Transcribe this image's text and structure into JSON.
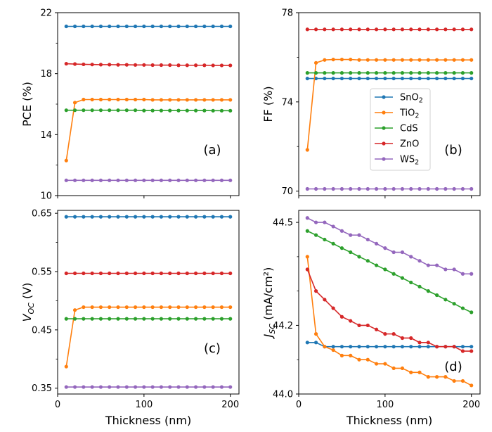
{
  "colors": {
    "SnO2": "#1f77b4",
    "TiO2": "#ff7f0e",
    "CdS": "#2ca02c",
    "ZnO": "#d62728",
    "WS2": "#9467bd"
  },
  "legend": {
    "entries": [
      {
        "key": "SnO2",
        "base": "SnO",
        "sub": "2"
      },
      {
        "key": "TiO2",
        "base": "TiO",
        "sub": "2"
      },
      {
        "key": "CdS",
        "base": "CdS",
        "sub": ""
      },
      {
        "key": "ZnO",
        "base": "ZnO",
        "sub": ""
      },
      {
        "key": "WS2",
        "base": "WS",
        "sub": "2"
      }
    ]
  },
  "chart_data": [
    {
      "type": "line",
      "panel_label": "(a)",
      "ylabel": "PCE (%)",
      "ylabel_base": "PCE (%)",
      "ylabel_sub": "",
      "ylabel_suffix": "",
      "xlabel": "",
      "xlim": [
        0,
        210
      ],
      "ylim": [
        10,
        22
      ],
      "xticks": [
        0,
        100,
        200
      ],
      "xtick_labels": [],
      "yticks": [
        10,
        14,
        18,
        22
      ],
      "ytick_labels": [
        "10",
        "14",
        "18",
        "22"
      ],
      "yminor": [
        12,
        16,
        20
      ],
      "x": [
        10,
        20,
        30,
        40,
        50,
        60,
        70,
        80,
        90,
        100,
        110,
        120,
        130,
        140,
        150,
        160,
        170,
        180,
        190,
        200
      ],
      "series": [
        {
          "name": "SnO2",
          "values": [
            21.1,
            21.1,
            21.1,
            21.1,
            21.1,
            21.1,
            21.1,
            21.1,
            21.1,
            21.1,
            21.1,
            21.1,
            21.1,
            21.1,
            21.1,
            21.1,
            21.1,
            21.1,
            21.1,
            21.1
          ]
        },
        {
          "name": "TiO2",
          "values": [
            12.3,
            16.1,
            16.3,
            16.3,
            16.3,
            16.3,
            16.3,
            16.3,
            16.3,
            16.3,
            16.28,
            16.28,
            16.28,
            16.28,
            16.28,
            16.28,
            16.28,
            16.28,
            16.28,
            16.28
          ]
        },
        {
          "name": "CdS",
          "values": [
            15.6,
            15.6,
            15.6,
            15.6,
            15.6,
            15.6,
            15.6,
            15.6,
            15.6,
            15.58,
            15.58,
            15.58,
            15.58,
            15.58,
            15.58,
            15.58,
            15.58,
            15.57,
            15.57,
            15.57
          ]
        },
        {
          "name": "ZnO",
          "values": [
            18.65,
            18.63,
            18.61,
            18.6,
            18.59,
            18.59,
            18.58,
            18.58,
            18.57,
            18.57,
            18.56,
            18.56,
            18.56,
            18.55,
            18.55,
            18.55,
            18.55,
            18.54,
            18.54,
            18.54
          ]
        },
        {
          "name": "WS2",
          "values": [
            11.0,
            11.0,
            11.0,
            11.0,
            11.0,
            11.0,
            11.0,
            11.0,
            11.0,
            11.0,
            11.0,
            11.0,
            11.0,
            11.0,
            11.0,
            11.0,
            11.0,
            11.0,
            11.0,
            11.0
          ]
        }
      ]
    },
    {
      "type": "line",
      "panel_label": "(b)",
      "ylabel": "FF (%)",
      "ylabel_base": "FF (%)",
      "ylabel_sub": "",
      "ylabel_suffix": "",
      "xlabel": "",
      "xlim": [
        0,
        210
      ],
      "ylim": [
        69.8,
        78
      ],
      "xticks": [
        0,
        100,
        200
      ],
      "xtick_labels": [],
      "yticks": [
        70,
        74,
        78
      ],
      "ytick_labels": [
        "70",
        "74",
        "78"
      ],
      "yminor": [
        72,
        76
      ],
      "legend": "center-right",
      "x": [
        10,
        20,
        30,
        40,
        50,
        60,
        70,
        80,
        90,
        100,
        110,
        120,
        130,
        140,
        150,
        160,
        170,
        180,
        190,
        200
      ],
      "series": [
        {
          "name": "SnO2",
          "values": [
            75.05,
            75.05,
            75.05,
            75.05,
            75.05,
            75.05,
            75.05,
            75.05,
            75.05,
            75.05,
            75.05,
            75.05,
            75.05,
            75.05,
            75.05,
            75.05,
            75.05,
            75.05,
            75.05,
            75.05
          ]
        },
        {
          "name": "TiO2",
          "values": [
            71.85,
            75.75,
            75.88,
            75.9,
            75.9,
            75.9,
            75.88,
            75.88,
            75.88,
            75.88,
            75.88,
            75.88,
            75.88,
            75.88,
            75.88,
            75.88,
            75.88,
            75.88,
            75.88,
            75.88
          ]
        },
        {
          "name": "CdS",
          "values": [
            75.3,
            75.3,
            75.3,
            75.3,
            75.3,
            75.3,
            75.3,
            75.3,
            75.3,
            75.3,
            75.3,
            75.3,
            75.3,
            75.3,
            75.3,
            75.3,
            75.3,
            75.3,
            75.3,
            75.3
          ]
        },
        {
          "name": "ZnO",
          "values": [
            77.25,
            77.25,
            77.25,
            77.25,
            77.25,
            77.25,
            77.25,
            77.25,
            77.25,
            77.25,
            77.25,
            77.25,
            77.25,
            77.25,
            77.25,
            77.25,
            77.25,
            77.25,
            77.25,
            77.25
          ]
        },
        {
          "name": "WS2",
          "values": [
            70.1,
            70.1,
            70.1,
            70.1,
            70.1,
            70.1,
            70.1,
            70.1,
            70.1,
            70.1,
            70.1,
            70.1,
            70.1,
            70.1,
            70.1,
            70.1,
            70.1,
            70.1,
            70.1,
            70.1
          ]
        }
      ]
    },
    {
      "type": "line",
      "panel_label": "(c)",
      "ylabel": "VOC (V)",
      "ylabel_base": "V",
      "ylabel_sub": "OC",
      "ylabel_suffix": " (V)",
      "xlabel": "Thickness (nm)",
      "xlim": [
        0,
        210
      ],
      "ylim": [
        0.34,
        0.655
      ],
      "xticks": [
        0,
        100,
        200
      ],
      "xtick_labels": [
        "0",
        "100",
        "200"
      ],
      "yticks": [
        0.35,
        0.45,
        0.55,
        0.65
      ],
      "ytick_labels": [
        "0.35",
        "0.45",
        "0.55",
        "0.65"
      ],
      "yminor": [
        0.4,
        0.5,
        0.6
      ],
      "x": [
        10,
        20,
        30,
        40,
        50,
        60,
        70,
        80,
        90,
        100,
        110,
        120,
        130,
        140,
        150,
        160,
        170,
        180,
        190,
        200
      ],
      "series": [
        {
          "name": "SnO2",
          "values": [
            0.644,
            0.644,
            0.644,
            0.644,
            0.644,
            0.644,
            0.644,
            0.644,
            0.644,
            0.644,
            0.644,
            0.644,
            0.644,
            0.644,
            0.644,
            0.644,
            0.644,
            0.644,
            0.644,
            0.644
          ]
        },
        {
          "name": "TiO2",
          "values": [
            0.387,
            0.484,
            0.489,
            0.489,
            0.489,
            0.489,
            0.489,
            0.489,
            0.489,
            0.489,
            0.489,
            0.489,
            0.489,
            0.489,
            0.489,
            0.489,
            0.489,
            0.489,
            0.489,
            0.489
          ]
        },
        {
          "name": "CdS",
          "values": [
            0.469,
            0.469,
            0.469,
            0.469,
            0.469,
            0.469,
            0.469,
            0.469,
            0.469,
            0.469,
            0.469,
            0.469,
            0.469,
            0.469,
            0.469,
            0.469,
            0.469,
            0.469,
            0.469,
            0.469
          ]
        },
        {
          "name": "ZnO",
          "values": [
            0.547,
            0.547,
            0.547,
            0.547,
            0.547,
            0.547,
            0.547,
            0.547,
            0.547,
            0.547,
            0.547,
            0.547,
            0.547,
            0.547,
            0.547,
            0.547,
            0.547,
            0.547,
            0.547,
            0.547
          ]
        },
        {
          "name": "WS2",
          "values": [
            0.352,
            0.352,
            0.352,
            0.352,
            0.352,
            0.352,
            0.352,
            0.352,
            0.352,
            0.352,
            0.352,
            0.352,
            0.352,
            0.352,
            0.352,
            0.352,
            0.352,
            0.352,
            0.352,
            0.352
          ]
        }
      ]
    },
    {
      "type": "line",
      "panel_label": "(d)",
      "ylabel": "JSC (mA/cm²)",
      "ylabel_base": "J",
      "ylabel_sub": "SC",
      "ylabel_suffix": " (mA/cm²)",
      "xlabel": "Thickness (nm)",
      "xlim": [
        0,
        210
      ],
      "ylim": [
        44.0,
        44.535
      ],
      "xticks": [
        0,
        100,
        200
      ],
      "xtick_labels": [
        "0",
        "100",
        "200"
      ],
      "yticks": [
        44.0,
        44.2,
        44.5
      ],
      "ytick_labels": [
        "44.0",
        "44.2",
        "44.5"
      ],
      "yminor": [
        44.1,
        44.3,
        44.4
      ],
      "x": [
        10,
        20,
        30,
        40,
        50,
        60,
        70,
        80,
        90,
        100,
        110,
        120,
        130,
        140,
        150,
        160,
        170,
        180,
        190,
        200
      ],
      "series": [
        {
          "name": "SnO2",
          "values": [
            44.15,
            44.15,
            44.138,
            44.138,
            44.138,
            44.138,
            44.138,
            44.138,
            44.138,
            44.138,
            44.138,
            44.138,
            44.138,
            44.138,
            44.138,
            44.138,
            44.138,
            44.138,
            44.138,
            44.138
          ]
        },
        {
          "name": "TiO2",
          "values": [
            44.4,
            44.175,
            44.138,
            44.128,
            44.112,
            44.112,
            44.1,
            44.1,
            44.088,
            44.088,
            44.075,
            44.075,
            44.063,
            44.063,
            44.05,
            44.05,
            44.05,
            44.038,
            44.038,
            44.025
          ]
        },
        {
          "name": "CdS",
          "values": [
            44.475,
            44.463,
            44.45,
            44.438,
            44.425,
            44.413,
            44.4,
            44.388,
            44.375,
            44.363,
            44.35,
            44.338,
            44.325,
            44.313,
            44.3,
            44.288,
            44.275,
            44.263,
            44.25,
            44.238
          ]
        },
        {
          "name": "ZnO",
          "values": [
            44.363,
            44.3,
            44.275,
            44.25,
            44.225,
            44.213,
            44.2,
            44.2,
            44.188,
            44.175,
            44.175,
            44.163,
            44.163,
            44.15,
            44.15,
            44.138,
            44.138,
            44.138,
            44.125,
            44.125
          ]
        },
        {
          "name": "WS2",
          "values": [
            44.513,
            44.5,
            44.5,
            44.488,
            44.475,
            44.463,
            44.463,
            44.45,
            44.438,
            44.425,
            44.413,
            44.413,
            44.4,
            44.388,
            44.375,
            44.375,
            44.363,
            44.363,
            44.35,
            44.35
          ]
        }
      ]
    }
  ]
}
